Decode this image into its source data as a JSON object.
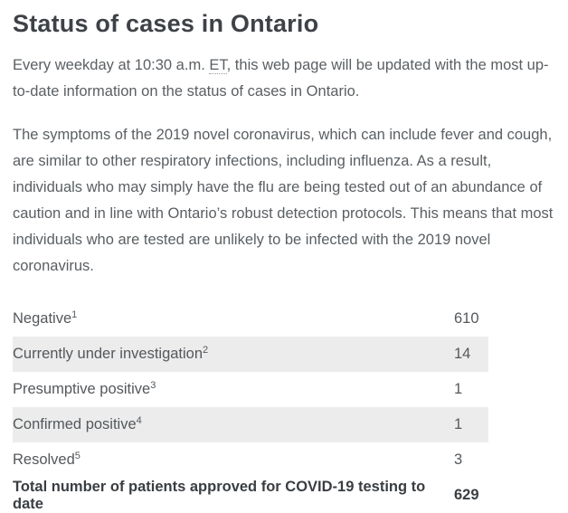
{
  "page": {
    "title": "Status of cases in Ontario",
    "intro": {
      "before_abbr": "Every weekday at 10:30 a.m. ",
      "abbr": "ET",
      "after_abbr": ", this web page will be updated with the most up-to-date information on the status of cases in Ontario."
    },
    "paragraph2": "The symptoms of the 2019 novel coronavirus, which can include fever and cough, are similar to other respiratory infections, including influenza. As a result, individuals who may simply have the flu are being tested out of an abundance of caution and in line with Ontario’s robust detection protocols. This means that most individuals who are tested are unlikely to be infected with the 2019 novel coronavirus."
  },
  "status_table": {
    "rows": [
      {
        "label": "Negative",
        "footnote": "1",
        "value": "610"
      },
      {
        "label": "Currently under investigation",
        "footnote": "2",
        "value": "14"
      },
      {
        "label": "Presumptive positive",
        "footnote": "3",
        "value": "1"
      },
      {
        "label": "Confirmed positive",
        "footnote": "4",
        "value": "1"
      },
      {
        "label": "Resolved",
        "footnote": "5",
        "value": "3"
      }
    ],
    "total": {
      "label": "Total number of patients approved for COVID-19 testing to date",
      "value": "629"
    }
  },
  "colors": {
    "heading": "#3e4247",
    "body_text": "#5a5f63",
    "table_text": "#54585c",
    "total_text": "#3a3e42",
    "row_stripe": "#ececec",
    "background": "#ffffff"
  }
}
